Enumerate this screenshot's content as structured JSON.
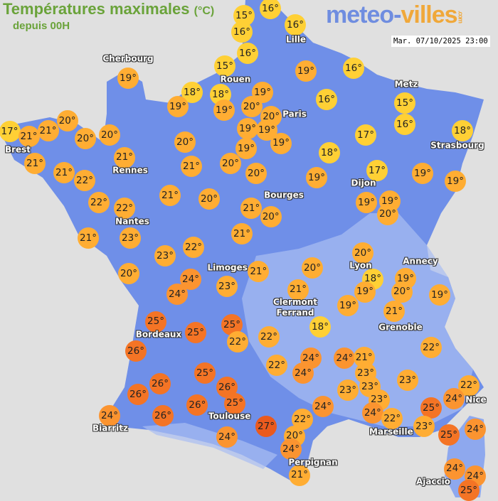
{
  "title": "Températures maximales",
  "unit": "(°C)",
  "subtitle": "depuis 00H",
  "logo": {
    "main": "meteo-",
    "accent": "villes",
    "tld": ".com"
  },
  "datetime": "Mar. 07/10/2025 23:00",
  "colors": {
    "sea": "#e0e0e0",
    "land": "#6f8fe8",
    "land_light": "#a9bdf2",
    "t15_18": "#ffd035",
    "t19_23": "#ffad33",
    "t24": "#fb9430",
    "t25_26": "#f47425",
    "t27": "#ea5a1e"
  },
  "cities": [
    "Cherbourg",
    "Rouen",
    "Lille",
    "Paris",
    "Metz",
    "Strasbourg",
    "Brest",
    "Rennes",
    "Nantes",
    "Dijon",
    "Bourges",
    "Limoges",
    "Lyon",
    "Annecy",
    "Clermont\nFerrand",
    "Grenoble",
    "Bordeaux",
    "Toulouse",
    "Biarritz",
    "Marseille",
    "Nice",
    "Perpignan",
    "Ajaccio"
  ],
  "temperatures": [
    15,
    16,
    16,
    16,
    16,
    15,
    19,
    18,
    19,
    18,
    19,
    19,
    20,
    19,
    16,
    16,
    20,
    19,
    19,
    19,
    19,
    15,
    16,
    17,
    18,
    17,
    21,
    21,
    20,
    20,
    20,
    21,
    20,
    21,
    21,
    22,
    21,
    20,
    20,
    18,
    17,
    19,
    19,
    19,
    19,
    19,
    20,
    22,
    22,
    21,
    20,
    21,
    20,
    21,
    23,
    21,
    22,
    23,
    20,
    24,
    24,
    23,
    21,
    20,
    20,
    18,
    19,
    19,
    20,
    19,
    21,
    19,
    21,
    18,
    25,
    25,
    25,
    22,
    22,
    26,
    22,
    24,
    24,
    24,
    21,
    23,
    25,
    26,
    26,
    26,
    23,
    23,
    23,
    24,
    23,
    22,
    22,
    24,
    25,
    24,
    26,
    26,
    25,
    24,
    22,
    22,
    23,
    24,
    25,
    27,
    24,
    20,
    24,
    21,
    24,
    24,
    25
  ]
}
